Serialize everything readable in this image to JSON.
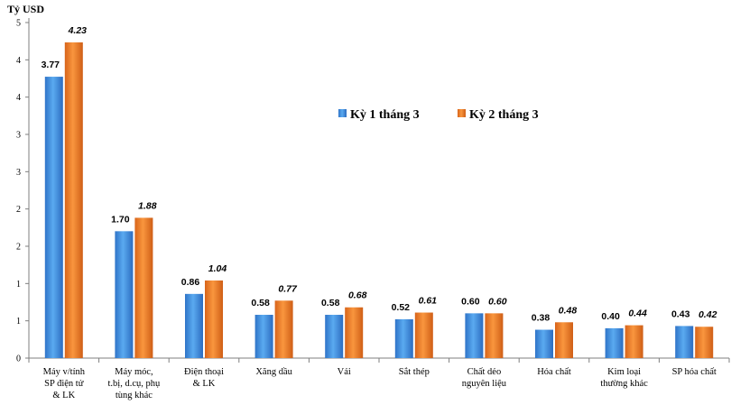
{
  "chart_data": {
    "type": "bar",
    "ylabel": "Tỷ USD",
    "ylim": [
      0,
      4.5
    ],
    "yticks": [
      "0",
      "1",
      "1",
      "2",
      "2",
      "3",
      "3",
      "4",
      "4",
      "5"
    ],
    "grid": false,
    "legend_position": "top-right",
    "categories": [
      [
        "Máy v/tính",
        "SP điện tử",
        "& LK"
      ],
      [
        "Máy móc,",
        "t.bị, d.cụ, phụ",
        "tùng khác"
      ],
      [
        "Điện thoại",
        "& LK"
      ],
      [
        "Xăng dầu"
      ],
      [
        "Vải"
      ],
      [
        "Sắt thép"
      ],
      [
        "Chất dẻo",
        "nguyên liệu"
      ],
      [
        "Hóa chất"
      ],
      [
        "Kim loại",
        "thường khác"
      ],
      [
        "SP hóa chất"
      ]
    ],
    "series": [
      {
        "name": "Kỳ 1 tháng 3",
        "color": "#3c8fdc",
        "values": [
          3.77,
          1.7,
          0.86,
          0.58,
          0.58,
          0.52,
          0.6,
          0.38,
          0.4,
          0.43
        ],
        "labels": [
          "3.77",
          "1.70",
          "0.86",
          "0.58",
          "0.58",
          "0.52",
          "0.60",
          "0.38",
          "0.40",
          "0.43"
        ]
      },
      {
        "name": "Kỳ 2 tháng 3",
        "color": "#ed7a22",
        "values": [
          4.23,
          1.88,
          1.04,
          0.77,
          0.68,
          0.61,
          0.6,
          0.48,
          0.44,
          0.42
        ],
        "labels": [
          "4.23",
          "1.88",
          "1.04",
          "0.77",
          "0.68",
          "0.61",
          "0.60",
          "0.48",
          "0.44",
          "0.42"
        ]
      }
    ]
  }
}
